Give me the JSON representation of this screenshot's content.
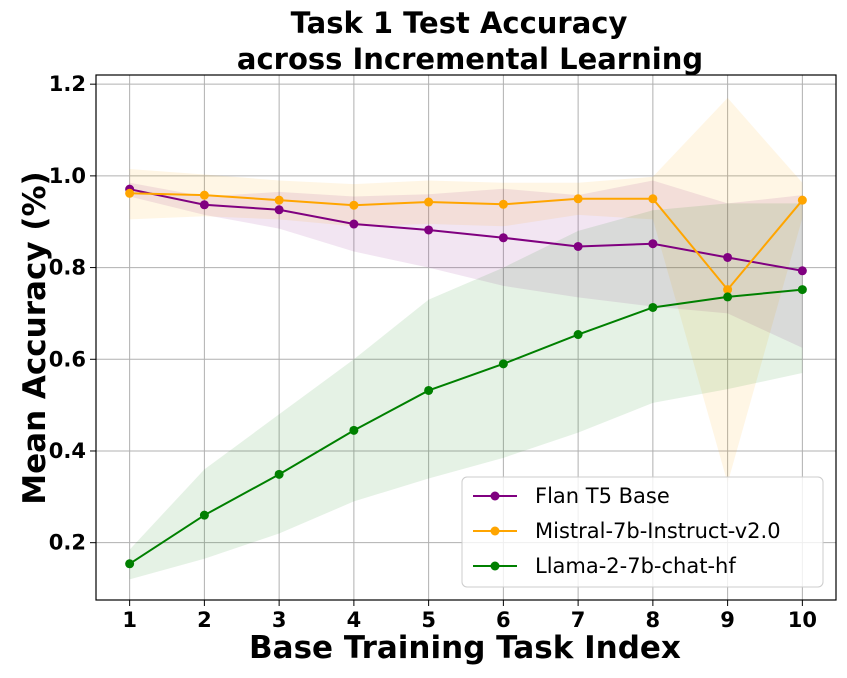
{
  "chart_data": {
    "type": "line",
    "title_line1": "Task 1 Test Accuracy",
    "title_line2": "across Incremental Learning",
    "xlabel": "Base Training Task Index",
    "ylabel": "Mean Accuracy (%)",
    "x": [
      1,
      2,
      3,
      4,
      5,
      6,
      7,
      8,
      9,
      10
    ],
    "xlim": [
      0.55,
      10.45
    ],
    "ylim": [
      0.075,
      1.22
    ],
    "yticks": [
      0.2,
      0.4,
      0.6,
      0.8,
      1.0,
      1.2
    ],
    "ytick_labels": [
      "0.2",
      "0.4",
      "0.6",
      "0.8",
      "1.0",
      "1.2"
    ],
    "xtick_labels": [
      "1",
      "2",
      "3",
      "4",
      "5",
      "6",
      "7",
      "8",
      "9",
      "10"
    ],
    "grid": true,
    "legend_position": "lower-right",
    "series": [
      {
        "name": "Flan T5 Base",
        "color": "#800080",
        "values": [
          0.971,
          0.937,
          0.926,
          0.895,
          0.882,
          0.865,
          0.846,
          0.852,
          0.822,
          0.793
        ],
        "band_upper": [
          0.985,
          0.955,
          0.965,
          0.955,
          0.96,
          0.972,
          0.958,
          0.99,
          0.94,
          0.958
        ],
        "band_lower": [
          0.955,
          0.915,
          0.885,
          0.835,
          0.8,
          0.76,
          0.735,
          0.715,
          0.7,
          0.625
        ]
      },
      {
        "name": "Mistral-7b-Instruct-v2.0",
        "color": "#ffa500",
        "values": [
          0.962,
          0.958,
          0.947,
          0.936,
          0.943,
          0.938,
          0.95,
          0.95,
          0.752,
          0.947
        ],
        "band_upper": [
          1.015,
          1.003,
          0.99,
          0.982,
          0.99,
          0.985,
          0.985,
          0.998,
          1.17,
          0.985
        ],
        "band_lower": [
          0.905,
          0.912,
          0.905,
          0.89,
          0.895,
          0.89,
          0.915,
          0.905,
          0.33,
          0.908
        ]
      },
      {
        "name": "Llama-2-7b-chat-hf",
        "color": "#008000",
        "values": [
          0.154,
          0.26,
          0.349,
          0.445,
          0.532,
          0.59,
          0.654,
          0.713,
          0.736,
          0.752
        ],
        "band_upper": [
          0.185,
          0.36,
          0.48,
          0.6,
          0.73,
          0.8,
          0.88,
          0.925,
          0.94,
          0.94
        ],
        "band_lower": [
          0.12,
          0.165,
          0.22,
          0.29,
          0.34,
          0.385,
          0.44,
          0.505,
          0.535,
          0.57
        ]
      }
    ]
  }
}
